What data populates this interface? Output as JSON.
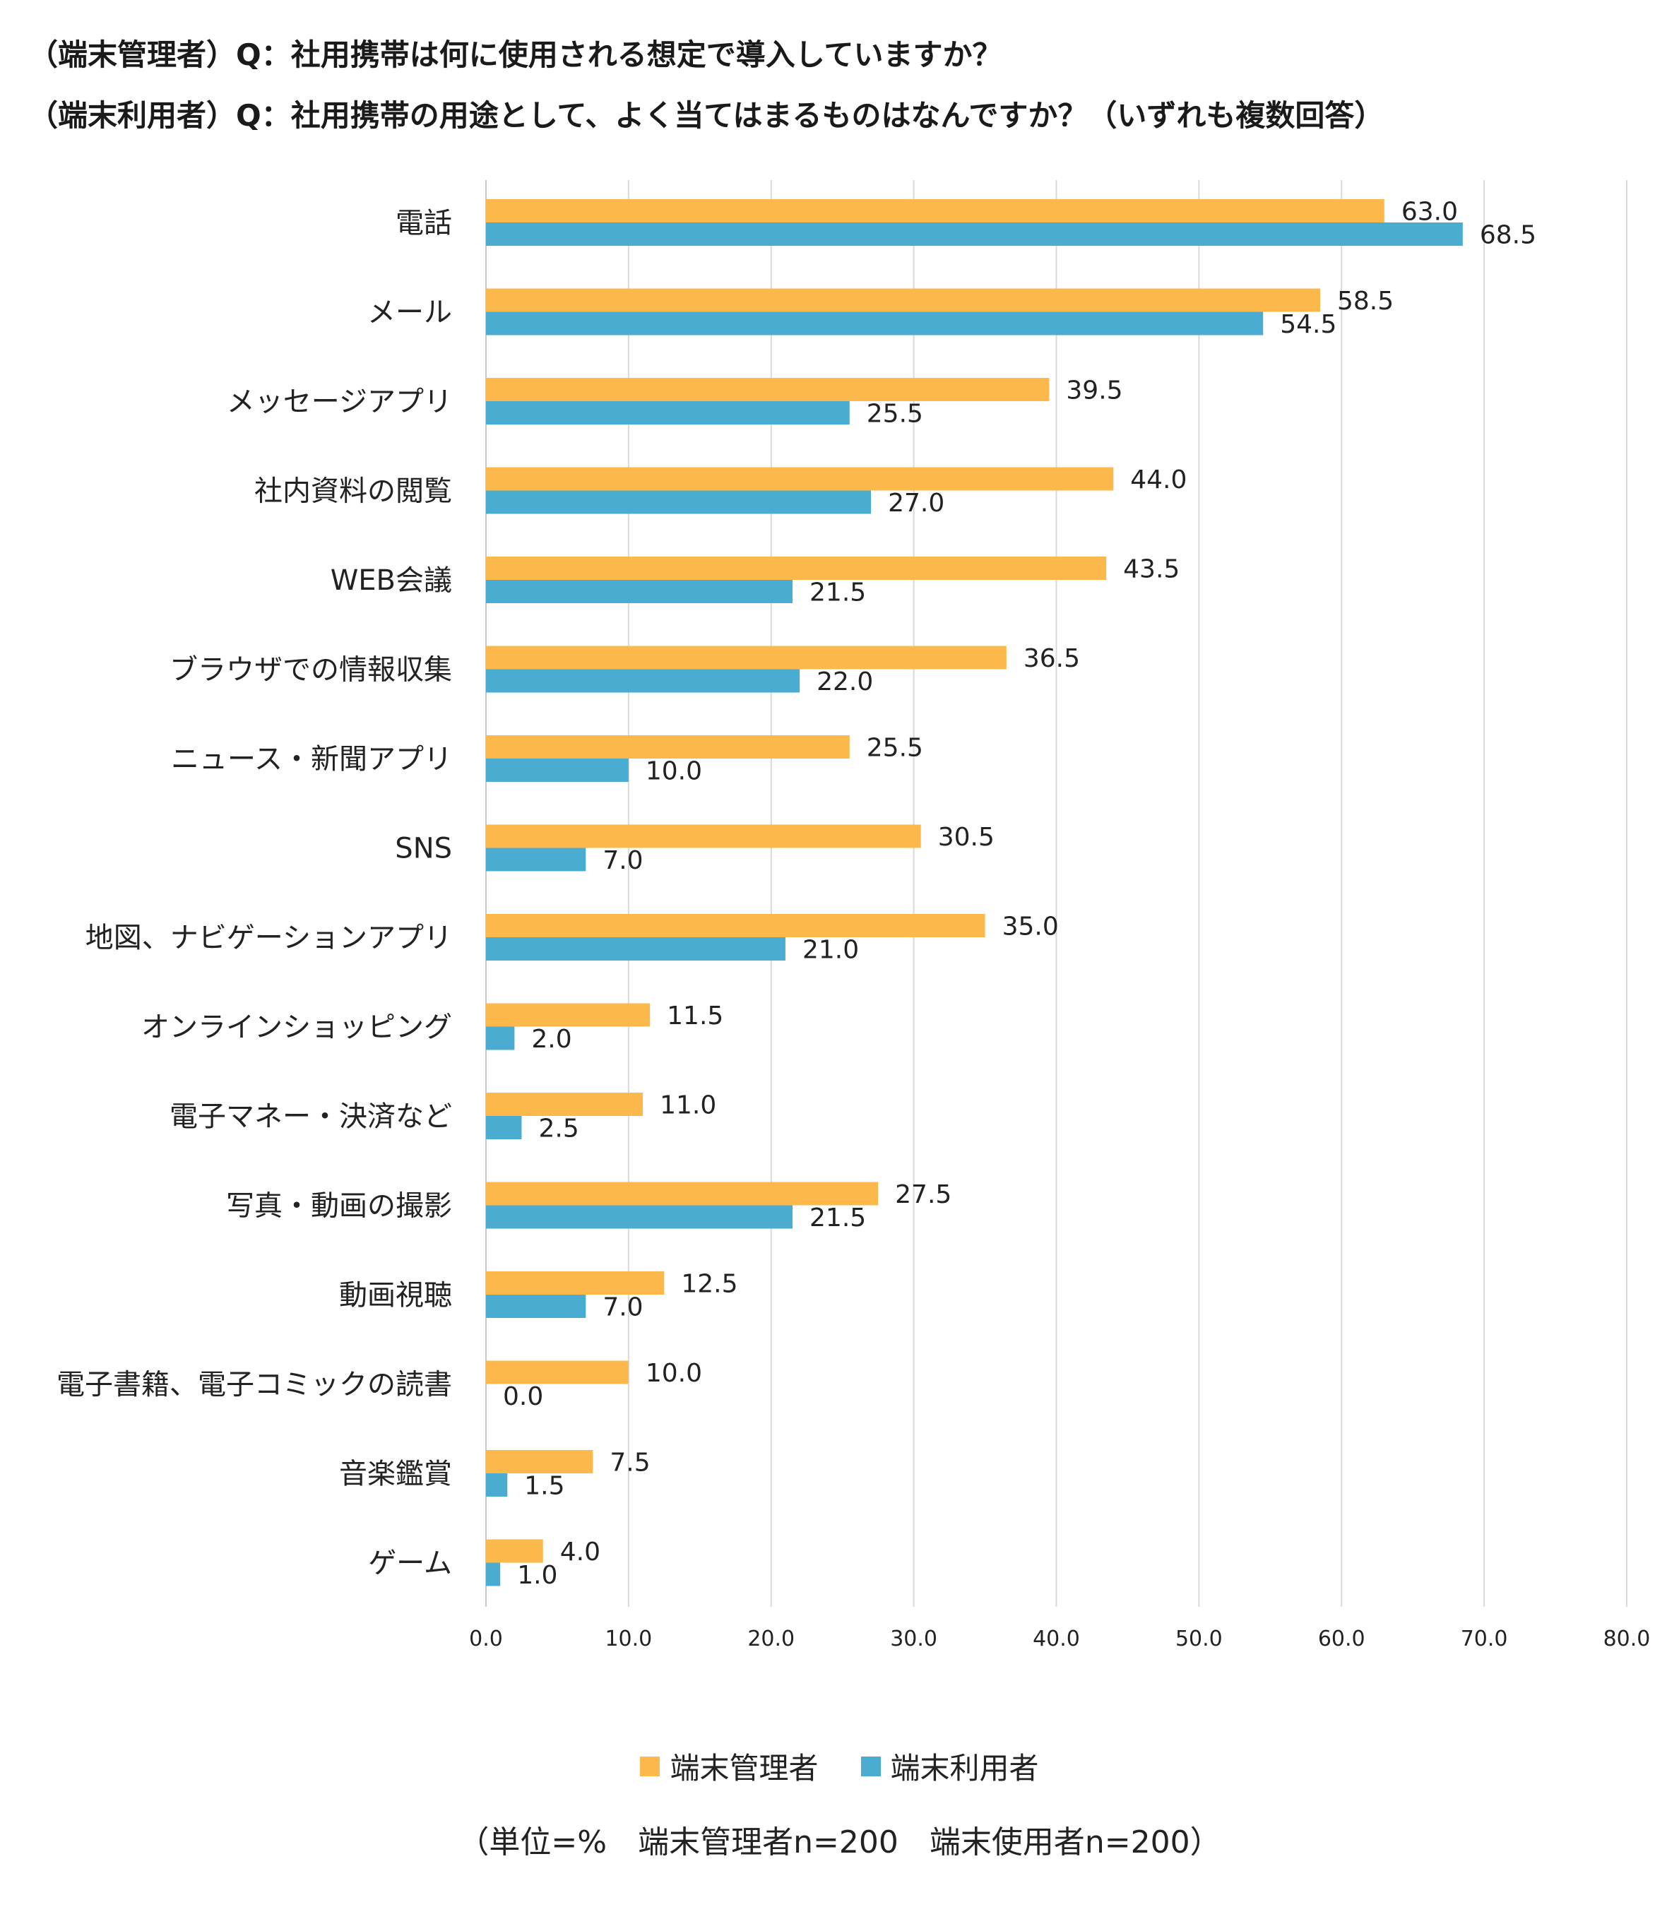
{
  "chart_data": {
    "type": "bar",
    "orientation": "horizontal",
    "title_lines": [
      "（端末管理者）Q：社用携帯は何に使用される想定で導入していますか？",
      "（端末利用者）Q：社用携帯の用途として、よく当てはまるものはなんですか？（いずれも複数回答）"
    ],
    "categories": [
      "電話",
      "メール",
      "メッセージアプリ",
      "社内資料の閲覧",
      "WEB会議",
      "ブラウザでの情報収集",
      "ニュース・新聞アプリ",
      "SNS",
      "地図、ナビゲーションアプリ",
      "オンラインショッピング",
      "電子マネー・決済など",
      "写真・動画の撮影",
      "動画視聴",
      "電子書籍、電子コミックの読書",
      "音楽鑑賞",
      "ゲーム"
    ],
    "series": [
      {
        "name": "端末管理者",
        "color": "#FDB84C",
        "values": [
          63.0,
          58.5,
          39.5,
          44.0,
          43.5,
          36.5,
          25.5,
          30.5,
          35.0,
          11.5,
          11.0,
          27.5,
          12.5,
          10.0,
          7.5,
          4.0
        ]
      },
      {
        "name": "端末利用者",
        "color": "#4BACD1",
        "values": [
          68.5,
          54.5,
          25.5,
          27.0,
          21.5,
          22.0,
          10.0,
          7.0,
          21.0,
          2.0,
          2.5,
          21.5,
          7.0,
          0.0,
          1.5,
          1.0
        ]
      }
    ],
    "xlim": [
      0,
      80
    ],
    "xticks": [
      "0.0",
      "10.0",
      "20.0",
      "30.0",
      "40.0",
      "50.0",
      "60.0",
      "70.0",
      "80.0"
    ],
    "grid": true,
    "legend_position": "bottom",
    "note": "（単位=%　端末管理者n=200　端末使用者n=200）"
  }
}
